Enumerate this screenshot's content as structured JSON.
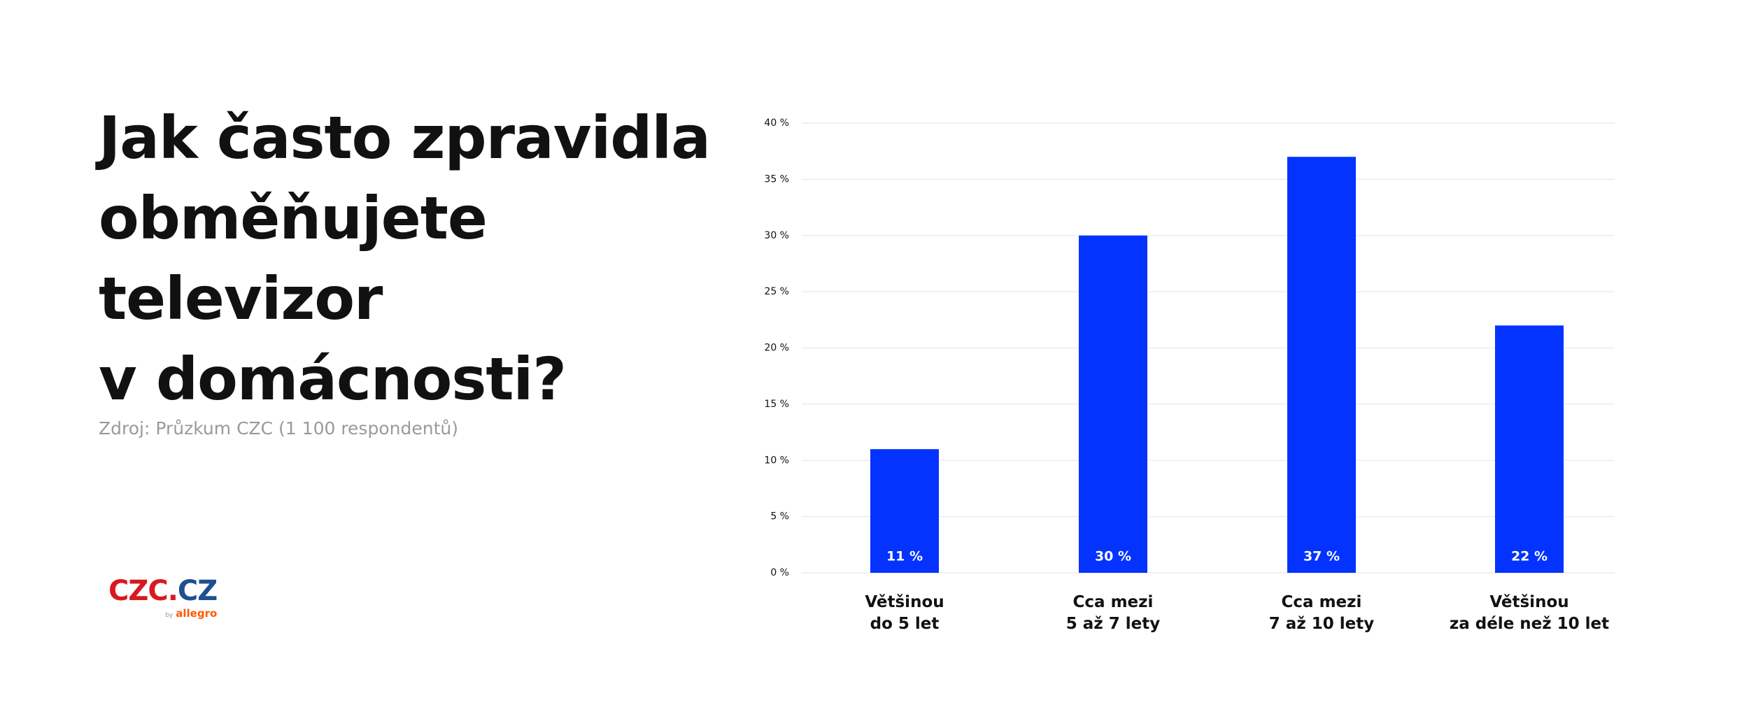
{
  "header": {
    "title": "Jak často zpravidla\nobměňujete\ntelevizor\nv domácnosti?",
    "source": "Zdroj: Průzkum CZC (1 100 respondentů)"
  },
  "logo": {
    "main": "CZC.",
    "accent": "CZ",
    "by": "by",
    "brand": "allegro"
  },
  "chart_data": {
    "type": "bar",
    "categories": [
      "Většinou\ndo 5 let",
      "Cca mezi\n5 až 7 lety",
      "Cca mezi\n7 až 10 lety",
      "Většinou\nza déle než 10 let"
    ],
    "values": [
      11,
      30,
      37,
      22
    ],
    "value_labels": [
      "11 %",
      "30 %",
      "37 %",
      "22 %"
    ],
    "color": "#0433ff",
    "ylim": [
      0,
      40
    ],
    "yticks": [
      {
        "value": 0,
        "label": "0 %"
      },
      {
        "value": 5,
        "label": "5 %"
      },
      {
        "value": 10,
        "label": "10 %"
      },
      {
        "value": 15,
        "label": "15 %"
      },
      {
        "value": 20,
        "label": "20 %"
      },
      {
        "value": 25,
        "label": "25 %"
      },
      {
        "value": 30,
        "label": "30 %"
      },
      {
        "value": 35,
        "label": "35 %"
      },
      {
        "value": 40,
        "label": "40 %"
      }
    ],
    "grid": true
  }
}
